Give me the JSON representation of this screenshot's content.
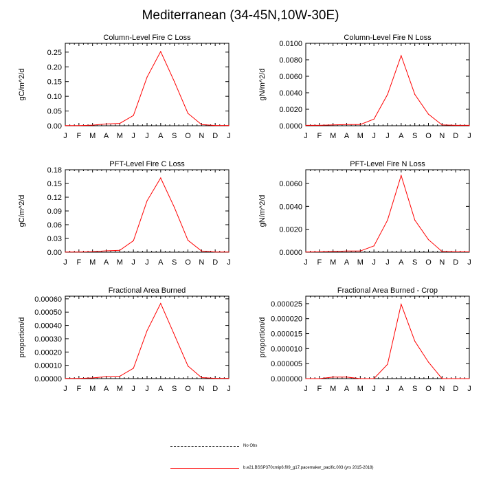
{
  "title": "Mediterranean (34-45N,10W-30E)",
  "legend": [
    {
      "label": "No Obs",
      "style": "dashed",
      "color": "#000000"
    },
    {
      "label": "b.e21.BSSP370cmip6.f09_g17.pacemaker_pacific.003 (yrs 2015-2018)",
      "style": "solid",
      "color": "#ff0000"
    }
  ],
  "series_color": "#ff0000",
  "chart_data": [
    {
      "type": "line",
      "title": "Column-Level Fire C Loss",
      "ylabel": "gC/m^2/d",
      "categories": [
        "J",
        "F",
        "M",
        "A",
        "M",
        "J",
        "J",
        "A",
        "S",
        "O",
        "N",
        "D",
        "J"
      ],
      "ylim": [
        0,
        0.28
      ],
      "yticks": [
        0.0,
        0.05,
        0.1,
        0.15,
        0.2,
        0.25
      ],
      "ytick_labels": [
        "0.00",
        "0.05",
        "0.10",
        "0.15",
        "0.20",
        "0.25"
      ],
      "series": [
        {
          "values": [
            0.0005,
            0.0005,
            0.002,
            0.006,
            0.008,
            0.035,
            0.165,
            0.252,
            0.15,
            0.042,
            0.004,
            0.001,
            0.001
          ]
        }
      ]
    },
    {
      "type": "line",
      "title": "Column-Level Fire N Loss",
      "ylabel": "gN/m^2/d",
      "categories": [
        "J",
        "F",
        "M",
        "A",
        "M",
        "J",
        "J",
        "A",
        "S",
        "O",
        "N",
        "D",
        "J"
      ],
      "ylim": [
        0,
        0.01
      ],
      "yticks": [
        0.0,
        0.002,
        0.004,
        0.006,
        0.008,
        0.01
      ],
      "ytick_labels": [
        "0.0000",
        "0.0020",
        "0.0040",
        "0.0060",
        "0.0080",
        "0.0100"
      ],
      "series": [
        {
          "values": [
            5e-05,
            5e-05,
            0.0001,
            0.00015,
            0.00015,
            0.0008,
            0.0038,
            0.0085,
            0.0038,
            0.0014,
            0.0001,
            5e-05,
            5e-05
          ]
        }
      ]
    },
    {
      "type": "line",
      "title": "PFT-Level Fire C Loss",
      "ylabel": "gC/m^2/d",
      "categories": [
        "J",
        "F",
        "M",
        "A",
        "M",
        "J",
        "J",
        "A",
        "S",
        "O",
        "N",
        "D",
        "J"
      ],
      "ylim": [
        0,
        0.18
      ],
      "yticks": [
        0.0,
        0.03,
        0.06,
        0.09,
        0.12,
        0.15,
        0.18
      ],
      "ytick_labels": [
        "0.00",
        "0.03",
        "0.06",
        "0.09",
        "0.12",
        "0.15",
        "0.18"
      ],
      "series": [
        {
          "values": [
            0.0003,
            0.0003,
            0.001,
            0.003,
            0.004,
            0.025,
            0.112,
            0.162,
            0.098,
            0.026,
            0.0025,
            0.0005,
            0.0005
          ]
        }
      ]
    },
    {
      "type": "line",
      "title": "PFT-Level Fire N Loss",
      "ylabel": "gN/m^2/d",
      "categories": [
        "J",
        "F",
        "M",
        "A",
        "M",
        "J",
        "J",
        "A",
        "S",
        "O",
        "N",
        "D",
        "J"
      ],
      "ylim": [
        0,
        0.0072
      ],
      "yticks": [
        0.0,
        0.002,
        0.004,
        0.006
      ],
      "ytick_labels": [
        "0.0000",
        "0.0020",
        "0.0040",
        "0.0060"
      ],
      "series": [
        {
          "values": [
            2e-05,
            3e-05,
            6e-05,
            0.0001,
            0.0001,
            0.00055,
            0.0028,
            0.0067,
            0.0028,
            0.0011,
            6e-05,
            3e-05,
            3e-05
          ]
        }
      ]
    },
    {
      "type": "line",
      "title": "Fractional Area Burned",
      "ylabel": "proportion/d",
      "categories": [
        "J",
        "F",
        "M",
        "A",
        "M",
        "J",
        "J",
        "A",
        "S",
        "O",
        "N",
        "D",
        "J"
      ],
      "ylim": [
        0,
        0.00062
      ],
      "yticks": [
        0.0,
        0.0001,
        0.0002,
        0.0003,
        0.0004,
        0.0005,
        0.0006
      ],
      "ytick_labels": [
        "0.00000",
        "0.00010",
        "0.00020",
        "0.00030",
        "0.00040",
        "0.00050",
        "0.00060"
      ],
      "series": [
        {
          "values": [
            1e-06,
            1e-06,
            5e-06,
            1.5e-05,
            1.8e-05,
            7.8e-05,
            0.00036,
            0.000565,
            0.00033,
            9.5e-05,
            8e-06,
            2e-06,
            2e-06
          ]
        }
      ]
    },
    {
      "type": "line",
      "title": "Fractional Area Burned - Crop",
      "ylabel": "proportion/d",
      "categories": [
        "J",
        "F",
        "M",
        "A",
        "M",
        "J",
        "J",
        "A",
        "S",
        "O",
        "N",
        "D",
        "J"
      ],
      "ylim": [
        0,
        2.75e-05
      ],
      "yticks": [
        0.0,
        5e-06,
        1e-05,
        1.5e-05,
        2e-05,
        2.5e-05
      ],
      "ytick_labels": [
        "0.000000",
        "0.000005",
        "0.000010",
        "0.000015",
        "0.000020",
        "0.000025"
      ],
      "series": [
        {
          "values": [
            0.0,
            0.0,
            5e-07,
            5e-07,
            0.0,
            0.0,
            4.8e-06,
            2.48e-05,
            1.25e-05,
            5.5e-06,
            0.0,
            0.0,
            0.0
          ]
        }
      ]
    }
  ]
}
